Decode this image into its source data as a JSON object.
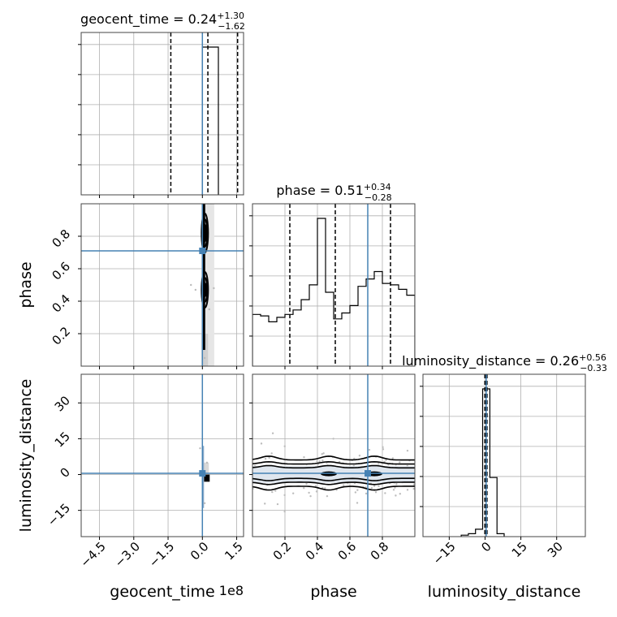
{
  "chart_data": {
    "type": "corner",
    "parameters": [
      "geocent_time",
      "phase",
      "luminosity_distance"
    ],
    "truth_color": "#4682b4",
    "grid": true,
    "scale_offsets": {
      "geocent_time": "1e8"
    },
    "diagonals": [
      {
        "parameter": "geocent_time",
        "title": {
          "name": "geocent_time",
          "median": "0.24",
          "plus": "+1.30",
          "minus": "−1.62"
        },
        "xlim": [
          -5.3,
          1.8
        ],
        "quantiles": [
          -1.38,
          0.24,
          1.54
        ],
        "truth": 0.0,
        "hist_x": [
          0.0,
          0.35,
          0.7
        ],
        "hist_y": [
          1.0,
          1.0
        ]
      },
      {
        "parameter": "phase",
        "title": {
          "name": "phase",
          "median": "0.51",
          "plus": "+0.34",
          "minus": "−0.28"
        },
        "xlim": [
          0.0,
          1.0
        ],
        "quantiles": [
          0.23,
          0.51,
          0.85
        ],
        "truth": 0.71,
        "hist_x": [
          0.0,
          0.05,
          0.1,
          0.15,
          0.2,
          0.25,
          0.3,
          0.35,
          0.4,
          0.45,
          0.5,
          0.55,
          0.6,
          0.65,
          0.7,
          0.75,
          0.8,
          0.85,
          0.9,
          0.95,
          1.0
        ],
        "hist_y": [
          0.35,
          0.34,
          0.3,
          0.33,
          0.35,
          0.38,
          0.45,
          0.55,
          1.0,
          0.5,
          0.32,
          0.36,
          0.41,
          0.54,
          0.59,
          0.64,
          0.56,
          0.55,
          0.52,
          0.48
        ]
      },
      {
        "parameter": "luminosity_distance",
        "title": {
          "name": "luminosity_distance",
          "median": "0.26",
          "plus": "+0.56",
          "minus": "−0.33"
        },
        "xlim": [
          -26,
          42
        ],
        "quantiles": [
          -0.07,
          0.26,
          0.82
        ],
        "truth": 0.5,
        "hist_x": [
          -10,
          -7,
          -4,
          -1,
          2,
          5,
          8
        ],
        "hist_y": [
          0.01,
          0.02,
          0.05,
          1.0,
          0.4,
          0.02
        ]
      }
    ],
    "pairs": [
      {
        "x": "geocent_time",
        "y": "phase",
        "xlim": [
          -5.3,
          1.8
        ],
        "ylim": [
          0.0,
          1.0
        ],
        "truth": [
          0.0,
          0.71
        ],
        "contours_x_spread": 0.15,
        "modes_y": [
          0.47,
          0.82
        ],
        "scatter": [
          [
            -0.5,
            0.5
          ],
          [
            -0.3,
            0.47
          ],
          [
            0.5,
            0.48
          ],
          [
            0.3,
            0.35
          ],
          [
            0.1,
            0.05
          ]
        ]
      },
      {
        "x": "geocent_time",
        "y": "luminosity_distance",
        "xlim": [
          -5.3,
          1.8
        ],
        "ylim": [
          -26,
          42
        ],
        "truth": [
          0.0,
          0.5
        ],
        "scatter": [
          [
            0.2,
            5.0
          ],
          [
            0.1,
            -12.0
          ],
          [
            -0.1,
            11.0
          ]
        ]
      },
      {
        "x": "phase",
        "y": "luminosity_distance",
        "xlim": [
          0.0,
          1.0
        ],
        "ylim": [
          -26,
          42
        ],
        "truth": [
          0.71,
          0.5
        ],
        "modes_x": [
          0.47,
          0.75,
          0.1
        ],
        "scatter_count": 160,
        "scatter_sigma": 6.0
      }
    ],
    "ticks": {
      "geocent_time": [
        "−4.5",
        "−3.0",
        "−1.5",
        "0.0",
        "1.5"
      ],
      "phase": [
        "0.2",
        "0.4",
        "0.6",
        "0.8"
      ],
      "luminosity_distance": [
        "−15",
        "0",
        "15",
        "30"
      ]
    },
    "tick_values": {
      "geocent_time": [
        -4.5,
        -3.0,
        -1.5,
        0.0,
        1.5
      ],
      "phase": [
        0.2,
        0.4,
        0.6,
        0.8
      ],
      "luminosity_distance": [
        -15,
        0,
        15,
        30
      ]
    },
    "axis_labels": {
      "geocent_time": "geocent_time",
      "phase": "phase",
      "luminosity_distance": "luminosity_distance"
    }
  }
}
